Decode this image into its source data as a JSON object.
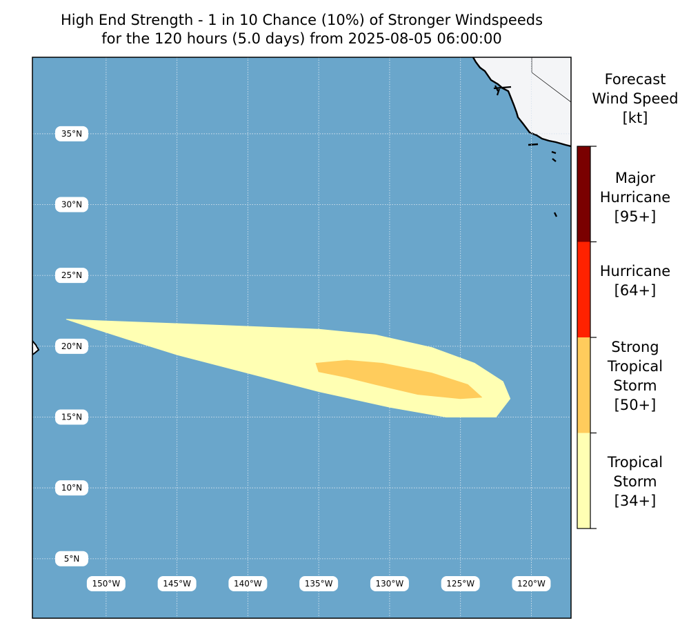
{
  "title": {
    "line1": "High End Strength - 1 in 10 Chance (10%) of Stronger Windspeeds",
    "line2": "for the 120 hours (5.0 days) from 2025-08-05 06:00:00"
  },
  "map": {
    "projection": "PlateCarree",
    "lon_range": [
      -155.2,
      -117.2
    ],
    "lat_range": [
      0.8,
      40.4
    ],
    "gridlines": "dotted",
    "lat_labels": [
      "35°N",
      "30°N",
      "25°N",
      "20°N",
      "15°N",
      "10°N",
      "5°N"
    ],
    "lon_labels": [
      "150°W",
      "145°W",
      "140°W",
      "135°W",
      "130°W",
      "125°W",
      "120°W"
    ],
    "lat_values": [
      35,
      30,
      25,
      20,
      15,
      10,
      5
    ],
    "lon_values": [
      -150,
      -145,
      -140,
      -135,
      -130,
      -125,
      -120
    ],
    "colors": {
      "ocean": "#6aa6cb",
      "land": "#f4f5f7",
      "coast": "#000000",
      "grid": "#d7e3ee"
    }
  },
  "chart_data": {
    "type": "heatmap",
    "variable": "Forecast Wind Speed [kt]",
    "swaths": [
      {
        "category": "Tropical Storm [34+]",
        "color": "#ffffb3",
        "outline_lonlat": [
          [
            -152.8,
            21.9
          ],
          [
            -150.5,
            21.8
          ],
          [
            -145.0,
            21.6
          ],
          [
            -140.0,
            21.4
          ],
          [
            -135.0,
            21.2
          ],
          [
            -131.0,
            20.8
          ],
          [
            -127.0,
            19.9
          ],
          [
            -124.0,
            18.8
          ],
          [
            -122.0,
            17.5
          ],
          [
            -121.5,
            16.3
          ],
          [
            -122.5,
            15.0
          ],
          [
            -126.0,
            15.0
          ],
          [
            -130.0,
            15.7
          ],
          [
            -135.0,
            16.8
          ],
          [
            -140.0,
            18.1
          ],
          [
            -145.0,
            19.4
          ],
          [
            -148.5,
            20.5
          ],
          [
            -151.0,
            21.3
          ]
        ]
      },
      {
        "category": "Strong Tropical Storm [50+]",
        "color": "#ffcc5c",
        "outline_lonlat": [
          [
            -135.2,
            18.8
          ],
          [
            -133.0,
            19.0
          ],
          [
            -130.5,
            18.8
          ],
          [
            -127.0,
            18.1
          ],
          [
            -124.5,
            17.3
          ],
          [
            -123.5,
            16.4
          ],
          [
            -125.0,
            16.3
          ],
          [
            -128.0,
            16.6
          ],
          [
            -131.0,
            17.3
          ],
          [
            -133.0,
            17.8
          ],
          [
            -135.0,
            18.2
          ]
        ]
      }
    ],
    "colorbar": {
      "title": [
        "Forecast",
        "Wind Speed",
        "[kt]"
      ],
      "categories": [
        {
          "lines": [
            "Major",
            "Hurricane",
            "[95+]"
          ],
          "color": "#7a0000",
          "threshold": 95
        },
        {
          "lines": [
            "Hurricane",
            "[64+]"
          ],
          "color": "#ff2200",
          "threshold": 64
        },
        {
          "lines": [
            "Strong",
            "Tropical",
            "Storm",
            "[50+]"
          ],
          "color": "#ffcc5c",
          "threshold": 50
        },
        {
          "lines": [
            "Tropical",
            "Storm",
            "[34+]"
          ],
          "color": "#ffffb3",
          "threshold": 34
        }
      ]
    }
  }
}
